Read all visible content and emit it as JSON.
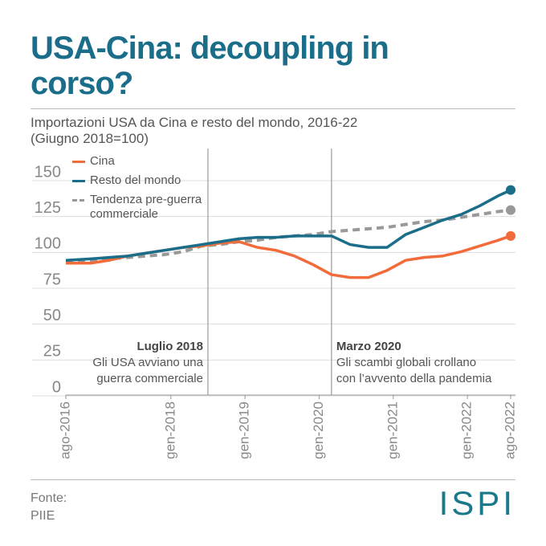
{
  "chart_data": {
    "type": "line",
    "title": "USA-Cina: decoupling in corso?",
    "subtitle": "Importazioni USA da Cina e resto del mondo, 2016-22 (Giugno 2018=100)",
    "source_label": "Fonte:",
    "source": "PIIE",
    "logo": "ISPI",
    "xlim": [
      "2016-08",
      "2022-08"
    ],
    "xticks": [
      {
        "value": "2016-08",
        "label": "ago-2016"
      },
      {
        "value": "2018-01",
        "label": "gen-2018"
      },
      {
        "value": "2019-01",
        "label": "gen-2019"
      },
      {
        "value": "2020-01",
        "label": "gen-2020"
      },
      {
        "value": "2021-01",
        "label": "gen-2021"
      },
      {
        "value": "2022-01",
        "label": "gen-2022"
      },
      {
        "value": "2022-08",
        "label": "ago-2022"
      }
    ],
    "ylim": [
      0,
      150
    ],
    "yticks": [
      0,
      25,
      50,
      75,
      100,
      125,
      150
    ],
    "grid": true,
    "legend": "top-left",
    "x": [
      "2016-08",
      "2016-12",
      "2017-03",
      "2017-06",
      "2017-09",
      "2017-12",
      "2018-03",
      "2018-06",
      "2018-09",
      "2018-12",
      "2019-03",
      "2019-06",
      "2019-09",
      "2019-12",
      "2020-03",
      "2020-06",
      "2020-09",
      "2020-12",
      "2021-03",
      "2021-06",
      "2021-09",
      "2021-12",
      "2022-03",
      "2022-06",
      "2022-08"
    ],
    "series": [
      {
        "name": "Cina",
        "color": "#f26b3a",
        "dash": false,
        "marker": true,
        "values": [
          88,
          88,
          90,
          93,
          95,
          97,
          99,
          100,
          102,
          103,
          99,
          97,
          93,
          87,
          80,
          78,
          78,
          83,
          90,
          92,
          93,
          96,
          100,
          104,
          107
        ]
      },
      {
        "name": "Resto del mondo",
        "color": "#1a6e8a",
        "dash": false,
        "marker": true,
        "values": [
          90,
          91,
          92,
          93,
          95,
          97,
          99,
          101,
          103,
          105,
          106,
          106,
          107,
          107,
          107,
          101,
          99,
          99,
          108,
          113,
          118,
          122,
          128,
          135,
          139
        ]
      },
      {
        "name": "Tendenza pre-guerra commerciale",
        "color": "#999999",
        "dash": true,
        "marker": true,
        "values": [
          89,
          90,
          91,
          92,
          93,
          94,
          96,
          100,
          101,
          103,
          104,
          106,
          107,
          108,
          110,
          111,
          112,
          113,
          115,
          117,
          118,
          120,
          122,
          124,
          125
        ]
      }
    ],
    "annotations": [
      {
        "x": "2018-07",
        "align": "left",
        "lines": [
          "Luglio 2018",
          "Gli USA avviano una",
          "guerra commerciale"
        ]
      },
      {
        "x": "2020-03",
        "align": "right",
        "lines": [
          "Marzo 2020",
          "Gli scambi globali crollano",
          "con l’avvento della pandemia"
        ]
      }
    ]
  }
}
